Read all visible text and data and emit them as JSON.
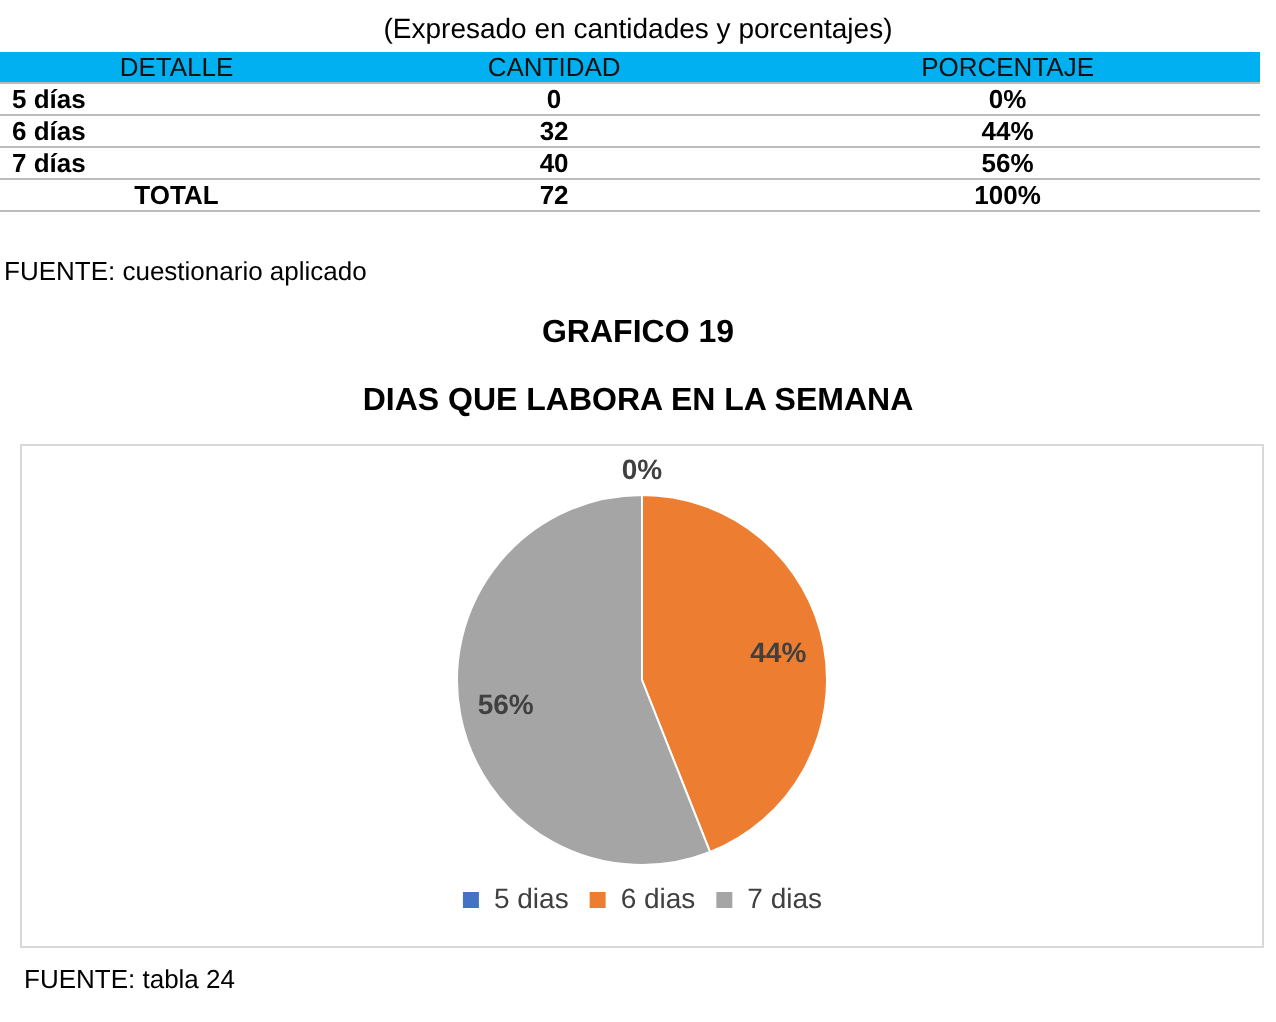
{
  "chart_data": {
    "type": "pie",
    "title": "DIAS QUE LABORA EN LA SEMANA",
    "subtitle": "GRAFICO  19",
    "categories": [
      "5 dias",
      "6 dias",
      "7 dias"
    ],
    "values": [
      0,
      44,
      56
    ],
    "colors": [
      "#4472c4",
      "#ed7d31",
      "#a5a5a5"
    ],
    "value_labels": [
      "0%",
      "44%",
      "56%"
    ],
    "legend": "bottom",
    "annotations": [
      "(Expresado en cantidades y porcentajes)",
      "DETALLE",
      "CANTIDAD",
      "PORCENTAJE",
      "5 días",
      "0",
      "0%",
      "6 días",
      "32",
      "44%",
      "7 días",
      "40",
      "56%",
      "TOTAL",
      "72",
      "100%",
      "FUENTE: cuestionario aplicado",
      "FUENTE: tabla 24"
    ]
  }
}
